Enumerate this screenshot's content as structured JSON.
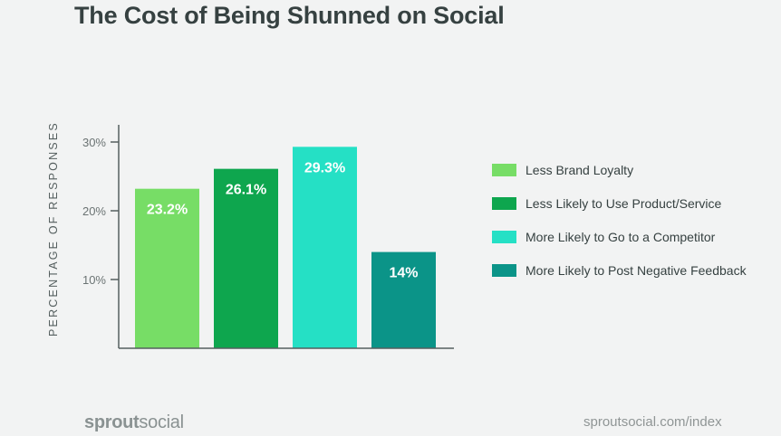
{
  "chart_data": {
    "type": "bar",
    "title": "The Cost of Being Shunned on Social",
    "xlabel": "",
    "ylabel": "PERCENTAGE OF RESPONSES",
    "ylim": [
      0,
      30
    ],
    "yticks": [
      {
        "value": 10,
        "label": "10%"
      },
      {
        "value": 20,
        "label": "20%"
      },
      {
        "value": 30,
        "label": "30%"
      }
    ],
    "grid": false,
    "legend_position": "right",
    "categories": [
      "Less Brand Loyalty",
      "Less Likely to Use Product/Service",
      "More Likely to Go to a Competitor",
      "More Likely to Post Negative Feedback"
    ],
    "values": [
      23.2,
      26.1,
      29.3,
      14
    ],
    "data_labels": [
      "23.2%",
      "26.1%",
      "29.3%",
      "14%"
    ],
    "colors": [
      "#77dd66",
      "#0ea64e",
      "#25e0c5",
      "#0b9488"
    ]
  },
  "footer": {
    "logo_bold": "sprout",
    "logo_light": "social",
    "url": "sproutsocial.com/index"
  }
}
